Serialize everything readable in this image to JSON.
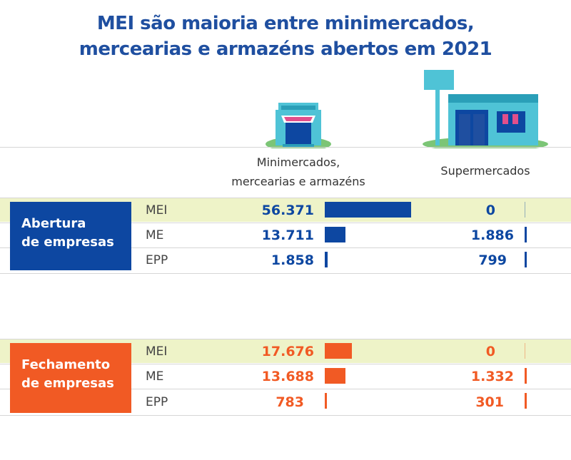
{
  "title_line1": "MEI são maioria entre minimercados,",
  "title_line2": "mercearias e armazéns abertos em 2021",
  "columns": {
    "minimercados_line1": "Minimercados,",
    "minimercados_line2": "mercearias e armazéns",
    "supermercados": "Supermercados"
  },
  "colors": {
    "abertura": "#0d47a1",
    "fechamento": "#f15a24",
    "band": "#eef3c8"
  },
  "icons": [
    "small-store-icon",
    "supermarket-icon"
  ],
  "chart_data": {
    "type": "bar",
    "categories": [
      "MEI",
      "ME",
      "EPP"
    ],
    "groups": [
      {
        "label_line1": "Abertura",
        "label_line2": "de empresas",
        "color": "#0d47a1",
        "minimercados": {
          "values": [
            56371,
            13711,
            1858
          ],
          "labels": [
            "56.371",
            "13.711",
            "1.858"
          ]
        },
        "supermercados": {
          "values": [
            0,
            1886,
            799
          ],
          "labels": [
            "0",
            "1.886",
            "799"
          ]
        }
      },
      {
        "label_line1": "Fechamento",
        "label_line2": "de empresas",
        "color": "#f15a24",
        "minimercados": {
          "values": [
            17676,
            13688,
            783
          ],
          "labels": [
            "17.676",
            "13.688",
            "783"
          ]
        },
        "supermercados": {
          "values": [
            0,
            1332,
            301
          ],
          "labels": [
            "0",
            "1.332",
            "301"
          ]
        }
      }
    ]
  }
}
